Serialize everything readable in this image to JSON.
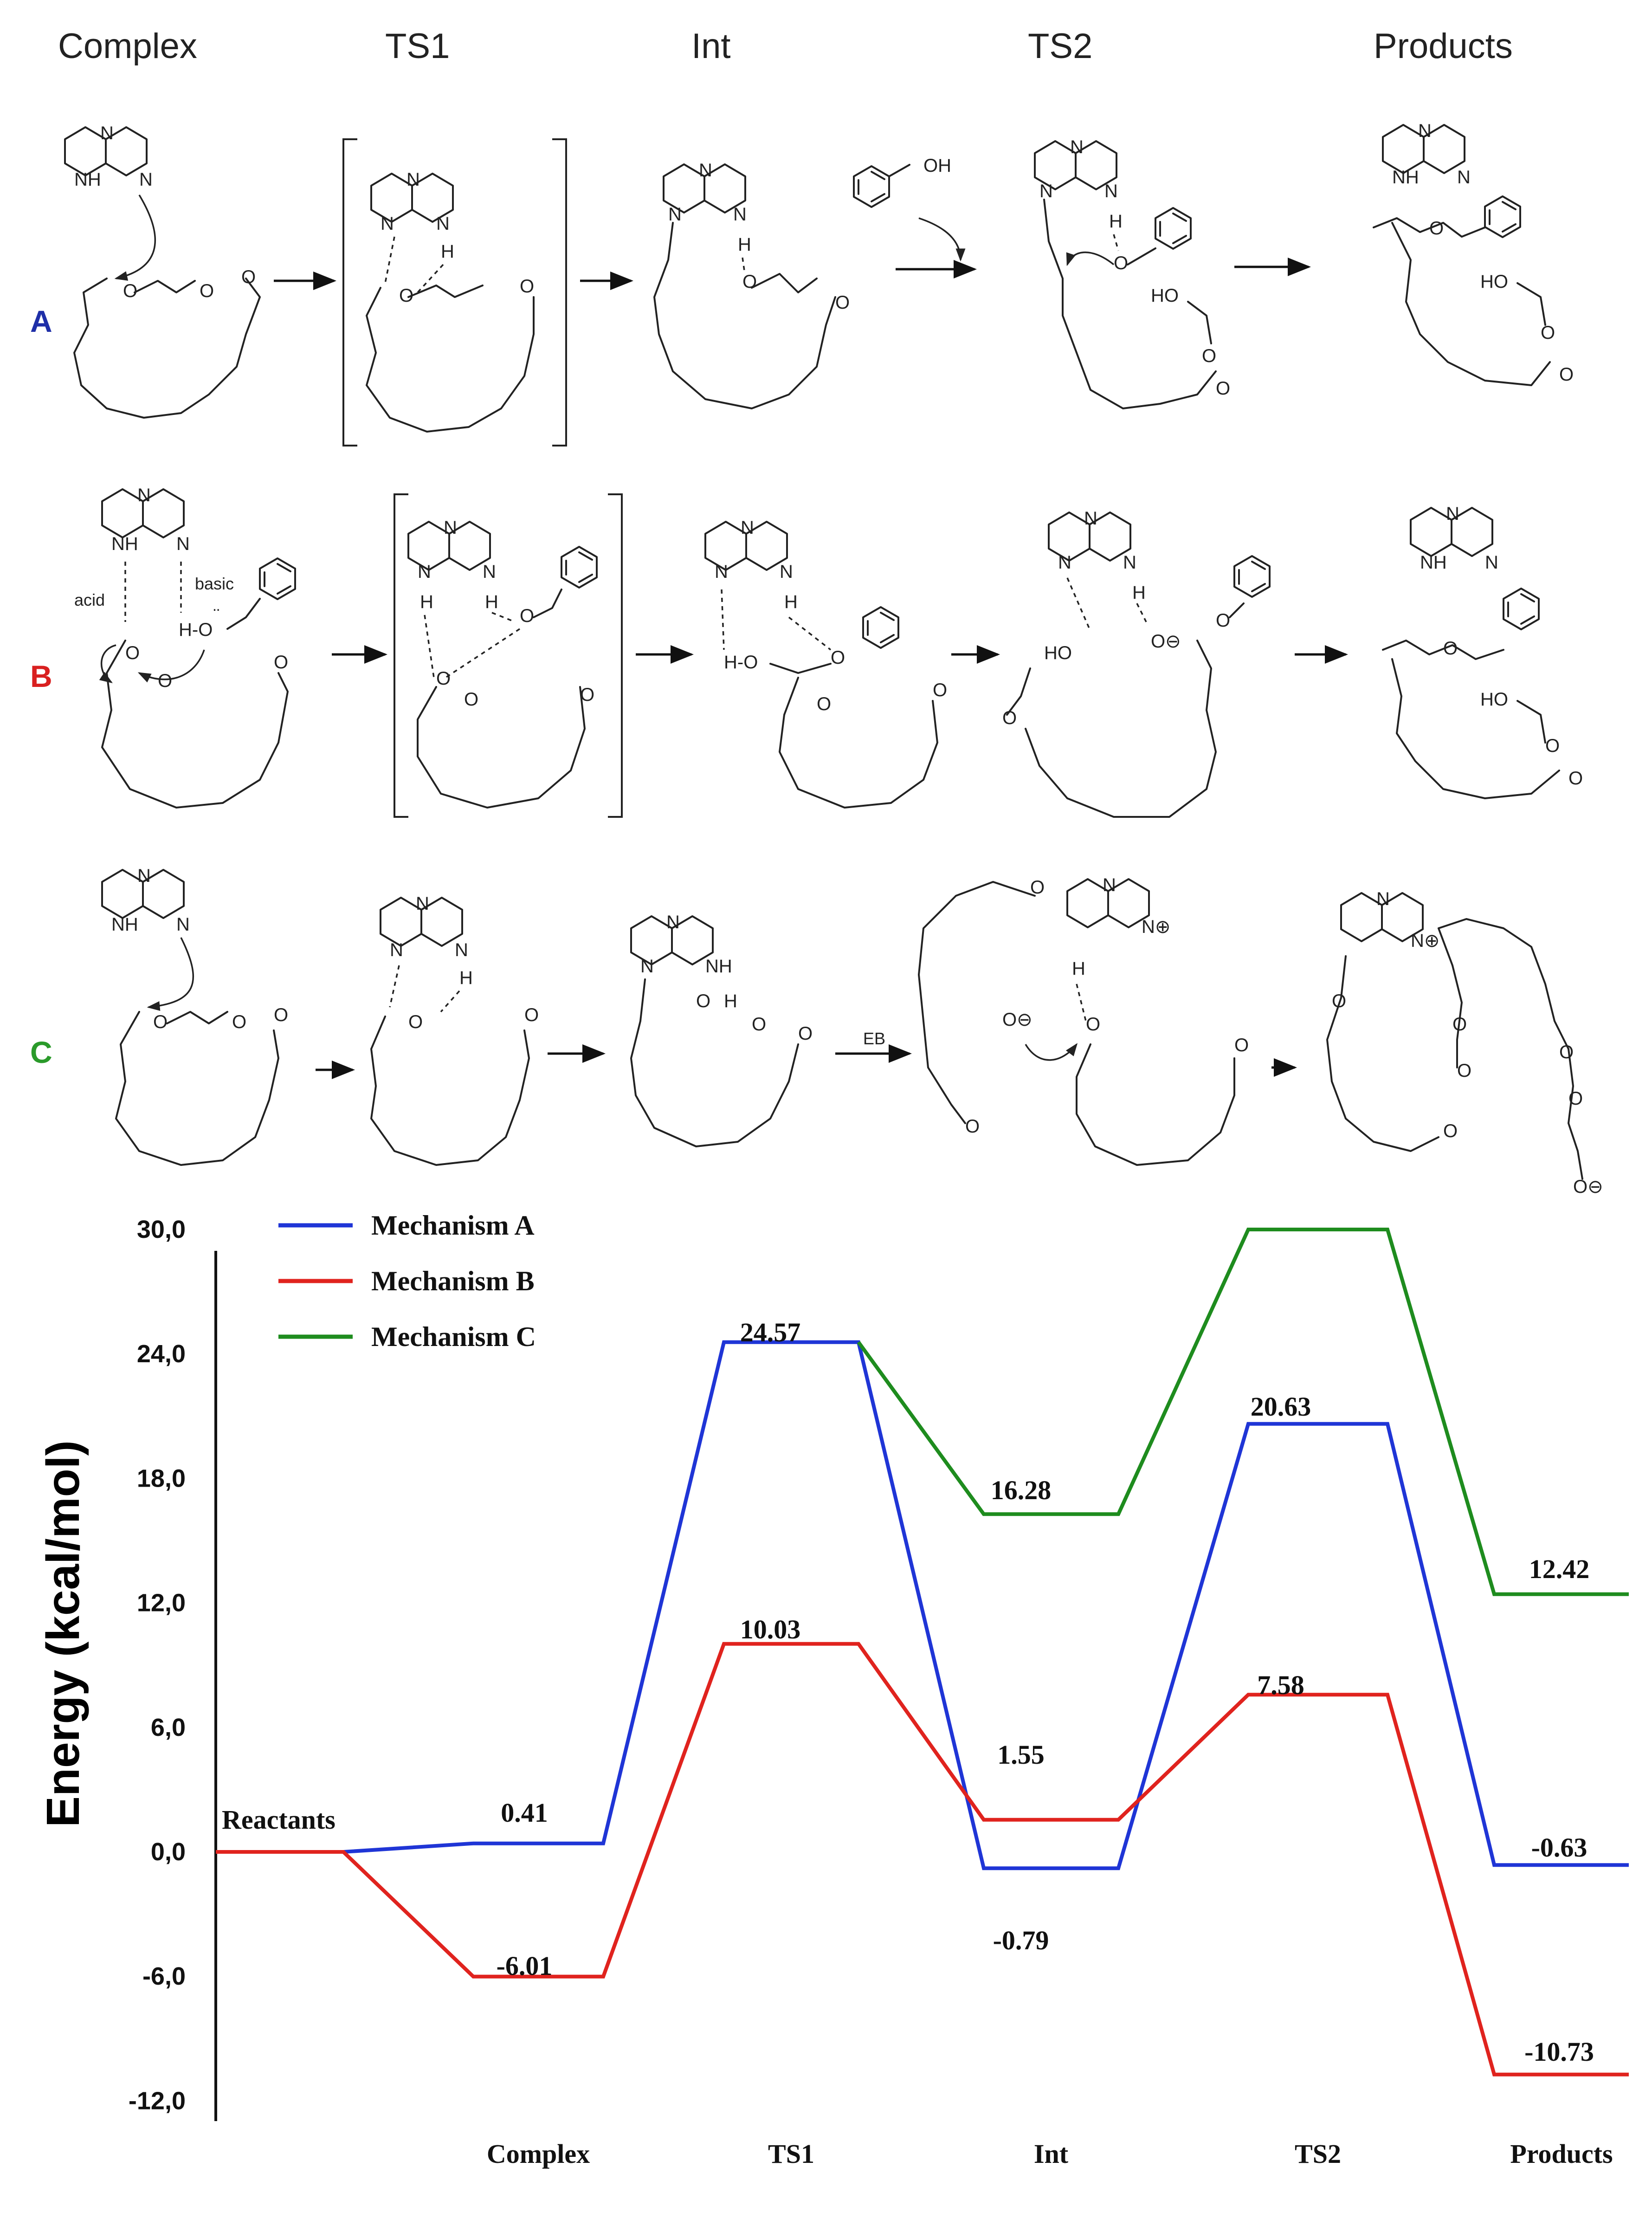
{
  "stages": [
    "Complex",
    "TS1",
    "Int",
    "TS2",
    "Products"
  ],
  "rows": [
    {
      "letter": "A",
      "color": "#1f2fa8"
    },
    {
      "letter": "B",
      "color": "#d92020"
    },
    {
      "letter": "C",
      "color": "#2a9a2a"
    }
  ],
  "atoms": {
    "N": "N",
    "H": "H",
    "NH": "NH",
    "HN": "HN",
    "O": "O",
    "OH": "OH",
    "HO": "HO",
    "H_O": "H-O",
    "ominus": "O⊖",
    "nplus": "N⊕"
  },
  "annotations": {
    "acid": "acid",
    "basic": "basic",
    "eb": "EB",
    "lone_pair": "¨"
  },
  "chart_data": {
    "type": "line",
    "ylabel": "Energy (kcal/mol)",
    "categories": [
      "Reactants",
      "Complex",
      "TS1",
      "Int",
      "TS2",
      "Products"
    ],
    "xtick_labels": [
      "Complex",
      "TS1",
      "Int",
      "TS2",
      "Products"
    ],
    "ylim": [
      -12,
      30
    ],
    "yticks": [
      "30,0",
      "24,0",
      "18,0",
      "12,0",
      "6,0",
      "0,0",
      "-6,0",
      "-12,0"
    ],
    "ytick_values": [
      30,
      24,
      18,
      12,
      6,
      0,
      -6,
      -12
    ],
    "reactants_label": "Reactants",
    "series": [
      {
        "name": "Mechanism A",
        "color": "#1f35d6",
        "values": [
          0,
          0.41,
          24.57,
          -0.79,
          20.63,
          -0.63
        ]
      },
      {
        "name": "Mechanism B",
        "color": "#e0231e",
        "values": [
          0,
          -6.01,
          10.03,
          1.55,
          7.58,
          -10.73
        ]
      },
      {
        "name": "Mechanism C",
        "color": "#1e8c1e",
        "values": [
          null,
          null,
          24.57,
          16.28,
          30.0,
          12.42
        ]
      }
    ],
    "data_labels": [
      "0.41",
      "-6.01",
      "24.57",
      "10.03",
      "16.28",
      "1.55",
      "-0.79",
      "20.63",
      "7.58",
      "12.42",
      "-0.63",
      "-10.73"
    ],
    "legend_position": "top-left",
    "grid": false
  }
}
